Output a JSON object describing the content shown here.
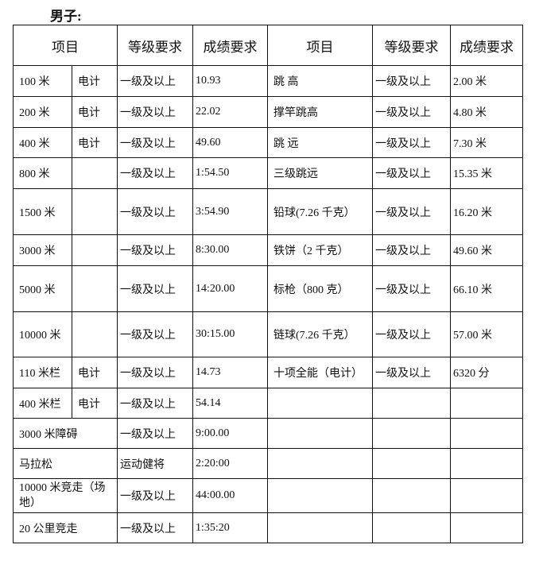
{
  "title": "男子:",
  "headers": [
    "项目",
    "等级要求",
    "成绩要求",
    "项目",
    "等级要求",
    "成绩要求"
  ],
  "left_rows": [
    {
      "item": "100 米",
      "note": "电计",
      "level": "一级及以上",
      "result": "10.93"
    },
    {
      "item": "200 米",
      "note": "电计",
      "level": "一级及以上",
      "result": "22.02"
    },
    {
      "item": "400 米",
      "note": "电计",
      "level": "一级及以上",
      "result": "49.60"
    },
    {
      "item": "800 米",
      "note": "",
      "level": "一级及以上",
      "result": "1:54.50"
    },
    {
      "item": "1500 米",
      "note": "",
      "level": "一级及以上",
      "result": "3:54.90"
    },
    {
      "item": "3000 米",
      "note": "",
      "level": "一级及以上",
      "result": "8:30.00"
    },
    {
      "item": "5000 米",
      "note": "",
      "level": "一级及以上",
      "result": "14:20.00"
    },
    {
      "item": "10000 米",
      "note": "",
      "level": "一级及以上",
      "result": "30:15.00"
    },
    {
      "item": "110 米栏",
      "note": "电计",
      "level": "一级及以上",
      "result": "14.73"
    },
    {
      "item": "400 米栏",
      "note": "电计",
      "level": "一级及以上",
      "result": "54.14"
    },
    {
      "item": "3000 米障碍",
      "level": "一级及以上",
      "result": "9:00.00"
    },
    {
      "item": "马拉松",
      "level": "运动健将",
      "result": "2:20:00"
    },
    {
      "item": "10000 米竞走（场地）",
      "level": "一级及以上",
      "result": "44:00.00"
    },
    {
      "item": "20 公里竞走",
      "level": "一级及以上",
      "result": "1:35:20"
    }
  ],
  "right_rows": [
    {
      "item": "跳 高",
      "level": "一级及以上",
      "result": "2.00 米"
    },
    {
      "item": "撑竿跳高",
      "level": "一级及以上",
      "result": "4.80 米"
    },
    {
      "item": "跳 远",
      "level": "一级及以上",
      "result": "7.30 米"
    },
    {
      "item": "三级跳远",
      "level": "一级及以上",
      "result": "15.35 米"
    },
    {
      "item": "铅球(7.26 千克）",
      "level": "一级及以上",
      "result": "16.20 米"
    },
    {
      "item": "铁饼（2 千克）",
      "level": "一级及以上",
      "result": "49.60 米"
    },
    {
      "item": "标枪（800 克）",
      "level": "一级及以上",
      "result": "66.10 米"
    },
    {
      "item": "链球(7.26 千克）",
      "level": "一级及以上",
      "result": "57.00 米"
    },
    {
      "item": "十项全能（电计）",
      "level": "一级及以上",
      "result": "6320 分"
    },
    {
      "item": "",
      "level": "",
      "result": ""
    },
    {
      "item": "",
      "level": "",
      "result": ""
    },
    {
      "item": "",
      "level": "",
      "result": ""
    },
    {
      "item": "",
      "level": "",
      "result": ""
    },
    {
      "item": "",
      "level": "",
      "result": ""
    }
  ]
}
